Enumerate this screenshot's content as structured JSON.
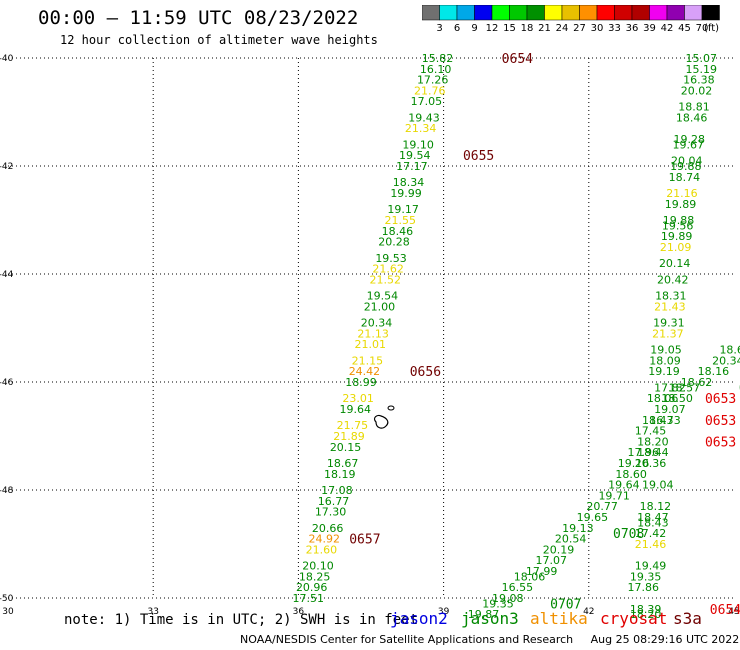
{
  "header": {
    "title": "00:00 – 11:59 UTC 08/23/2022",
    "subtitle": "12 hour collection of altimeter wave heights"
  },
  "colorbar": {
    "colors": [
      "#707070",
      "#00e8e8",
      "#00a8e8",
      "#0000f0",
      "#00ff00",
      "#00c800",
      "#009000",
      "#ffff00",
      "#e8c000",
      "#ff9000",
      "#ff0000",
      "#d00000",
      "#b00000",
      "#f000f0",
      "#9000b0",
      "#d8a0f8",
      "#000000"
    ],
    "ticks": [
      "3",
      "6",
      "9",
      "12",
      "15",
      "18",
      "21",
      "24",
      "27",
      "30",
      "33",
      "36",
      "39",
      "42",
      "45",
      "70"
    ],
    "unit": "(ft)"
  },
  "map": {
    "lon_ticks": [
      "30",
      "33",
      "36",
      "39",
      "42",
      "45"
    ],
    "lat_ticks": [
      "-40",
      "-42",
      "-44",
      "-46",
      "-48",
      "-50"
    ],
    "coast_color": "#000000"
  },
  "legend": {
    "note": "note: 1) Time is in UTC; 2) SWH is in feet",
    "satellites": [
      {
        "name": "jason2",
        "color": "#0000e0"
      },
      {
        "name": "jason3",
        "color": "#008800"
      },
      {
        "name": "altika",
        "color": "#f09000"
      },
      {
        "name": "cryosat",
        "color": "#e00000"
      },
      {
        "name": "s3a",
        "color": "#700000"
      }
    ]
  },
  "footer": {
    "credit": "NOAA/NESDIS Center for Satellite Applications and Research     Aug 25 08:29:16 UTC 2022"
  },
  "tracks": {
    "west": {
      "color_key": "s3a",
      "points": [
        {
          "lon": 39.2,
          "lat": -40.0,
          "v": "15.82",
          "c": "g"
        },
        {
          "lon": 39.16,
          "lat": -40.2,
          "v": "16.10",
          "c": "g"
        },
        {
          "lon": 39.1,
          "lat": -40.4,
          "v": "17.26",
          "c": "g"
        },
        {
          "lon": 39.04,
          "lat": -40.6,
          "v": "21.76",
          "c": "y"
        },
        {
          "lon": 38.97,
          "lat": -40.8,
          "v": "17.05",
          "c": "g"
        },
        {
          "lon": 38.92,
          "lat": -41.1,
          "v": "19.43",
          "c": "g"
        },
        {
          "lon": 38.85,
          "lat": -41.3,
          "v": "21.34",
          "c": "y"
        },
        {
          "lon": 38.8,
          "lat": -41.6,
          "v": "19.10",
          "c": "g"
        },
        {
          "lon": 38.73,
          "lat": -41.8,
          "v": "19.54",
          "c": "g"
        },
        {
          "lon": 38.67,
          "lat": -42.0,
          "v": "17.17",
          "c": "g"
        },
        {
          "lon": 38.6,
          "lat": -42.3,
          "v": "18.34",
          "c": "g"
        },
        {
          "lon": 38.55,
          "lat": -42.5,
          "v": "19.99",
          "c": "g"
        },
        {
          "lon": 38.49,
          "lat": -42.8,
          "v": "19.17",
          "c": "g"
        },
        {
          "lon": 38.43,
          "lat": -43.0,
          "v": "21.55",
          "c": "y"
        },
        {
          "lon": 38.37,
          "lat": -43.2,
          "v": "18.46",
          "c": "g"
        },
        {
          "lon": 38.3,
          "lat": -43.4,
          "v": "20.28",
          "c": "g"
        },
        {
          "lon": 38.24,
          "lat": -43.7,
          "v": "19.53",
          "c": "g"
        },
        {
          "lon": 38.18,
          "lat": -43.9,
          "v": "21.62",
          "c": "y"
        },
        {
          "lon": 38.12,
          "lat": -44.1,
          "v": "21.52",
          "c": "y"
        },
        {
          "lon": 38.06,
          "lat": -44.4,
          "v": "19.54",
          "c": "g"
        },
        {
          "lon": 38.0,
          "lat": -44.6,
          "v": "21.00",
          "c": "g"
        },
        {
          "lon": 37.94,
          "lat": -44.9,
          "v": "20.34",
          "c": "g"
        },
        {
          "lon": 37.87,
          "lat": -45.1,
          "v": "21.13",
          "c": "y"
        },
        {
          "lon": 37.81,
          "lat": -45.3,
          "v": "21.01",
          "c": "y"
        },
        {
          "lon": 37.75,
          "lat": -45.6,
          "v": "21.15",
          "c": "y"
        },
        {
          "lon": 37.69,
          "lat": -45.8,
          "v": "24.42",
          "c": "o"
        },
        {
          "lon": 37.62,
          "lat": -46.0,
          "v": "18.99",
          "c": "g"
        },
        {
          "lon": 37.56,
          "lat": -46.3,
          "v": "23.01",
          "c": "y"
        },
        {
          "lon": 37.5,
          "lat": -46.5,
          "v": "19.64",
          "c": "g"
        },
        {
          "lon": 37.44,
          "lat": -46.8,
          "v": "21.75",
          "c": "y"
        },
        {
          "lon": 37.37,
          "lat": -47.0,
          "v": "21.89",
          "c": "y"
        },
        {
          "lon": 37.3,
          "lat": -47.2,
          "v": "20.15",
          "c": "g"
        },
        {
          "lon": 37.24,
          "lat": -47.5,
          "v": "18.67",
          "c": "g"
        },
        {
          "lon": 37.18,
          "lat": -47.7,
          "v": "18.19",
          "c": "g"
        },
        {
          "lon": 37.12,
          "lat": -48.0,
          "v": "17.08",
          "c": "g"
        },
        {
          "lon": 37.05,
          "lat": -48.2,
          "v": "16.77",
          "c": "g"
        },
        {
          "lon": 36.99,
          "lat": -48.4,
          "v": "17.30",
          "c": "g"
        },
        {
          "lon": 36.93,
          "lat": -48.7,
          "v": "20.66",
          "c": "g"
        },
        {
          "lon": 36.86,
          "lat": -48.9,
          "v": "24.92",
          "c": "o"
        },
        {
          "lon": 36.8,
          "lat": -49.1,
          "v": "21.60",
          "c": "y"
        },
        {
          "lon": 36.73,
          "lat": -49.4,
          "v": "20.10",
          "c": "g"
        },
        {
          "lon": 36.66,
          "lat": -49.6,
          "v": "18.25",
          "c": "g"
        },
        {
          "lon": 36.6,
          "lat": -49.8,
          "v": "20.96",
          "c": "g"
        },
        {
          "lon": 36.53,
          "lat": -50.0,
          "v": "17.51",
          "c": "g"
        }
      ],
      "times": [
        {
          "lon": 40.2,
          "lat": -40.0,
          "t": "0654",
          "c": "m"
        },
        {
          "lon": 39.4,
          "lat": -41.8,
          "t": "0655",
          "c": "m"
        },
        {
          "lon": 38.3,
          "lat": -45.8,
          "t": "0656",
          "c": "m"
        },
        {
          "lon": 37.05,
          "lat": -48.9,
          "t": "0657",
          "c": "m"
        }
      ]
    },
    "east_north": {
      "points": [
        {
          "lon": 44.65,
          "lat": -40.0,
          "v": "15.07",
          "c": "g"
        },
        {
          "lon": 44.65,
          "lat": -40.2,
          "v": "15.19",
          "c": "g"
        },
        {
          "lon": 44.6,
          "lat": -40.4,
          "v": "16.38",
          "c": "g"
        },
        {
          "lon": 44.55,
          "lat": -40.6,
          "v": "20.02",
          "c": "g"
        },
        {
          "lon": 44.5,
          "lat": -40.9,
          "v": "18.81",
          "c": "g"
        },
        {
          "lon": 44.45,
          "lat": -41.1,
          "v": "18.46",
          "c": "g"
        },
        {
          "lon": 44.4,
          "lat": -41.5,
          "v": "19.28",
          "c": "g"
        },
        {
          "lon": 44.38,
          "lat": -41.6,
          "v": "19.67",
          "c": "g"
        },
        {
          "lon": 44.35,
          "lat": -41.9,
          "v": "20.04",
          "c": "g"
        },
        {
          "lon": 44.33,
          "lat": -42.0,
          "v": "19.88",
          "c": "g"
        },
        {
          "lon": 44.3,
          "lat": -42.2,
          "v": "18.74",
          "c": "g"
        },
        {
          "lon": 44.25,
          "lat": -42.5,
          "v": "21.16",
          "c": "y"
        },
        {
          "lon": 44.22,
          "lat": -42.7,
          "v": "19.89",
          "c": "g"
        },
        {
          "lon": 44.18,
          "lat": -43.0,
          "v": "19.88",
          "c": "g"
        },
        {
          "lon": 44.16,
          "lat": -43.1,
          "v": "19.56",
          "c": "g"
        },
        {
          "lon": 44.14,
          "lat": -43.3,
          "v": "19.89",
          "c": "g"
        },
        {
          "lon": 44.12,
          "lat": -43.5,
          "v": "21.09",
          "c": "y"
        },
        {
          "lon": 44.1,
          "lat": -43.8,
          "v": "20.14",
          "c": "g"
        },
        {
          "lon": 44.06,
          "lat": -44.1,
          "v": "20.42",
          "c": "g"
        },
        {
          "lon": 44.02,
          "lat": -44.4,
          "v": "18.31",
          "c": "g"
        },
        {
          "lon": 44.0,
          "lat": -44.6,
          "v": "21.43",
          "c": "y"
        },
        {
          "lon": 43.98,
          "lat": -44.9,
          "v": "19.31",
          "c": "g"
        },
        {
          "lon": 43.96,
          "lat": -45.1,
          "v": "21.37",
          "c": "y"
        },
        {
          "lon": 43.92,
          "lat": -45.4,
          "v": "19.05",
          "c": "g"
        },
        {
          "lon": 43.9,
          "lat": -45.6,
          "v": "18.09",
          "c": "g"
        },
        {
          "lon": 43.88,
          "lat": -45.8,
          "v": "19.19",
          "c": "g"
        }
      ],
      "times": [
        {
          "lon": 45.15,
          "lat": -40.1,
          "t": "0",
          "c": "r"
        },
        {
          "lon": 45.15,
          "lat": -40.5,
          "t": "0",
          "c": "r"
        },
        {
          "lon": 45.15,
          "lat": -40.8,
          "t": "0",
          "c": "r"
        },
        {
          "lon": 45.15,
          "lat": -41.0,
          "t": "0",
          "c": "r"
        },
        {
          "lon": 45.15,
          "lat": -41.9,
          "t": "06",
          "c": "r"
        },
        {
          "lon": 45.15,
          "lat": -42.6,
          "t": "065",
          "c": "r"
        },
        {
          "lon": 45.15,
          "lat": -43.0,
          "t": "065",
          "c": "r"
        }
      ]
    },
    "east_south": {
      "points": [
        {
          "lon": 45.4,
          "lat": -45.0,
          "v": "18",
          "c": "g"
        },
        {
          "lon": 45.35,
          "lat": -45.4,
          "v": "18.64",
          "c": "g"
        },
        {
          "lon": 45.2,
          "lat": -45.6,
          "v": "20.34",
          "c": "g"
        },
        {
          "lon": 44.9,
          "lat": -45.8,
          "v": "18.16",
          "c": "g"
        },
        {
          "lon": 44.55,
          "lat": -46.0,
          "v": "18.62",
          "c": "g"
        },
        {
          "lon": 44.3,
          "lat": -46.1,
          "v": "18.57",
          "c": "g"
        },
        {
          "lon": 44.0,
          "lat": -46.1,
          "v": "17.82",
          "c": "g"
        },
        {
          "lon": 43.85,
          "lat": -46.3,
          "v": "18.06",
          "c": "g"
        },
        {
          "lon": 44.15,
          "lat": -46.3,
          "v": "18.50",
          "c": "g"
        },
        {
          "lon": 44.0,
          "lat": -46.5,
          "v": "19.07",
          "c": "g"
        },
        {
          "lon": 43.75,
          "lat": -46.7,
          "v": "18.43",
          "c": "g"
        },
        {
          "lon": 43.9,
          "lat": -46.7,
          "v": "16.73",
          "c": "g"
        },
        {
          "lon": 43.6,
          "lat": -46.9,
          "v": "17.45",
          "c": "g"
        },
        {
          "lon": 43.65,
          "lat": -47.1,
          "v": "18.20",
          "c": "g"
        },
        {
          "lon": 43.45,
          "lat": -47.3,
          "v": "17.96",
          "c": "g"
        },
        {
          "lon": 43.65,
          "lat": -47.3,
          "v": "18.44",
          "c": "g"
        },
        {
          "lon": 43.6,
          "lat": -47.5,
          "v": "20.36",
          "c": "g"
        },
        {
          "lon": 43.25,
          "lat": -47.5,
          "v": "19.16",
          "c": "g"
        },
        {
          "lon": 43.2,
          "lat": -47.7,
          "v": "18.60",
          "c": "g"
        },
        {
          "lon": 43.05,
          "lat": -47.9,
          "v": "19.64",
          "c": "g"
        },
        {
          "lon": 43.75,
          "lat": -47.9,
          "v": "19.04",
          "c": "g"
        },
        {
          "lon": 42.85,
          "lat": -48.1,
          "v": "19.71",
          "c": "g"
        },
        {
          "lon": 42.6,
          "lat": -48.3,
          "v": "20.77",
          "c": "g"
        },
        {
          "lon": 43.7,
          "lat": -48.3,
          "v": "18.12",
          "c": "g"
        },
        {
          "lon": 42.4,
          "lat": -48.5,
          "v": "19.65",
          "c": "g"
        },
        {
          "lon": 43.65,
          "lat": -48.5,
          "v": "18.47",
          "c": "g"
        },
        {
          "lon": 43.65,
          "lat": -48.6,
          "v": "18.43",
          "c": "g"
        },
        {
          "lon": 42.1,
          "lat": -48.7,
          "v": "19.13",
          "c": "g"
        },
        {
          "lon": 43.6,
          "lat": -48.8,
          "v": "17.42",
          "c": "g"
        },
        {
          "lon": 41.95,
          "lat": -48.9,
          "v": "20.54",
          "c": "g"
        },
        {
          "lon": 43.6,
          "lat": -49.0,
          "v": "21.46",
          "c": "y"
        },
        {
          "lon": 41.7,
          "lat": -49.1,
          "v": "20.19",
          "c": "g"
        },
        {
          "lon": 41.55,
          "lat": -49.3,
          "v": "17.07",
          "c": "g"
        },
        {
          "lon": 43.6,
          "lat": -49.4,
          "v": "19.49",
          "c": "g"
        },
        {
          "lon": 41.35,
          "lat": -49.5,
          "v": "17.99",
          "c": "g"
        },
        {
          "lon": 41.1,
          "lat": -49.6,
          "v": "18.06",
          "c": "g"
        },
        {
          "lon": 43.5,
          "lat": -49.6,
          "v": "19.35",
          "c": "g"
        },
        {
          "lon": 40.85,
          "lat": -49.8,
          "v": "16.55",
          "c": "g"
        },
        {
          "lon": 43.45,
          "lat": -49.8,
          "v": "17.86",
          "c": "g"
        },
        {
          "lon": 40.65,
          "lat": -50.0,
          "v": "19.08",
          "c": "g"
        },
        {
          "lon": 40.45,
          "lat": -50.1,
          "v": "19.35",
          "c": "g"
        },
        {
          "lon": 40.15,
          "lat": -50.3,
          "v": "19.87",
          "c": "g"
        },
        {
          "lon": 43.5,
          "lat": -50.2,
          "v": "18.39",
          "c": "g"
        },
        {
          "lon": 43.5,
          "lat": -50.3,
          "v": "18.20",
          "c": "g"
        }
      ],
      "times": [
        {
          "lon": 45.1,
          "lat": -46.1,
          "t": "07",
          "c": "g"
        },
        {
          "lon": 44.4,
          "lat": -46.3,
          "t": "0653",
          "c": "r"
        },
        {
          "lon": 44.4,
          "lat": -46.7,
          "t": "0653",
          "c": "r"
        },
        {
          "lon": 44.4,
          "lat": -47.1,
          "t": "0653",
          "c": "r"
        },
        {
          "lon": 42.5,
          "lat": -48.8,
          "t": "0708",
          "c": "g"
        },
        {
          "lon": 41.2,
          "lat": -50.1,
          "t": "0707",
          "c": "g"
        },
        {
          "lon": 44.5,
          "lat": -50.2,
          "t": "0654",
          "c": "r"
        }
      ]
    }
  }
}
